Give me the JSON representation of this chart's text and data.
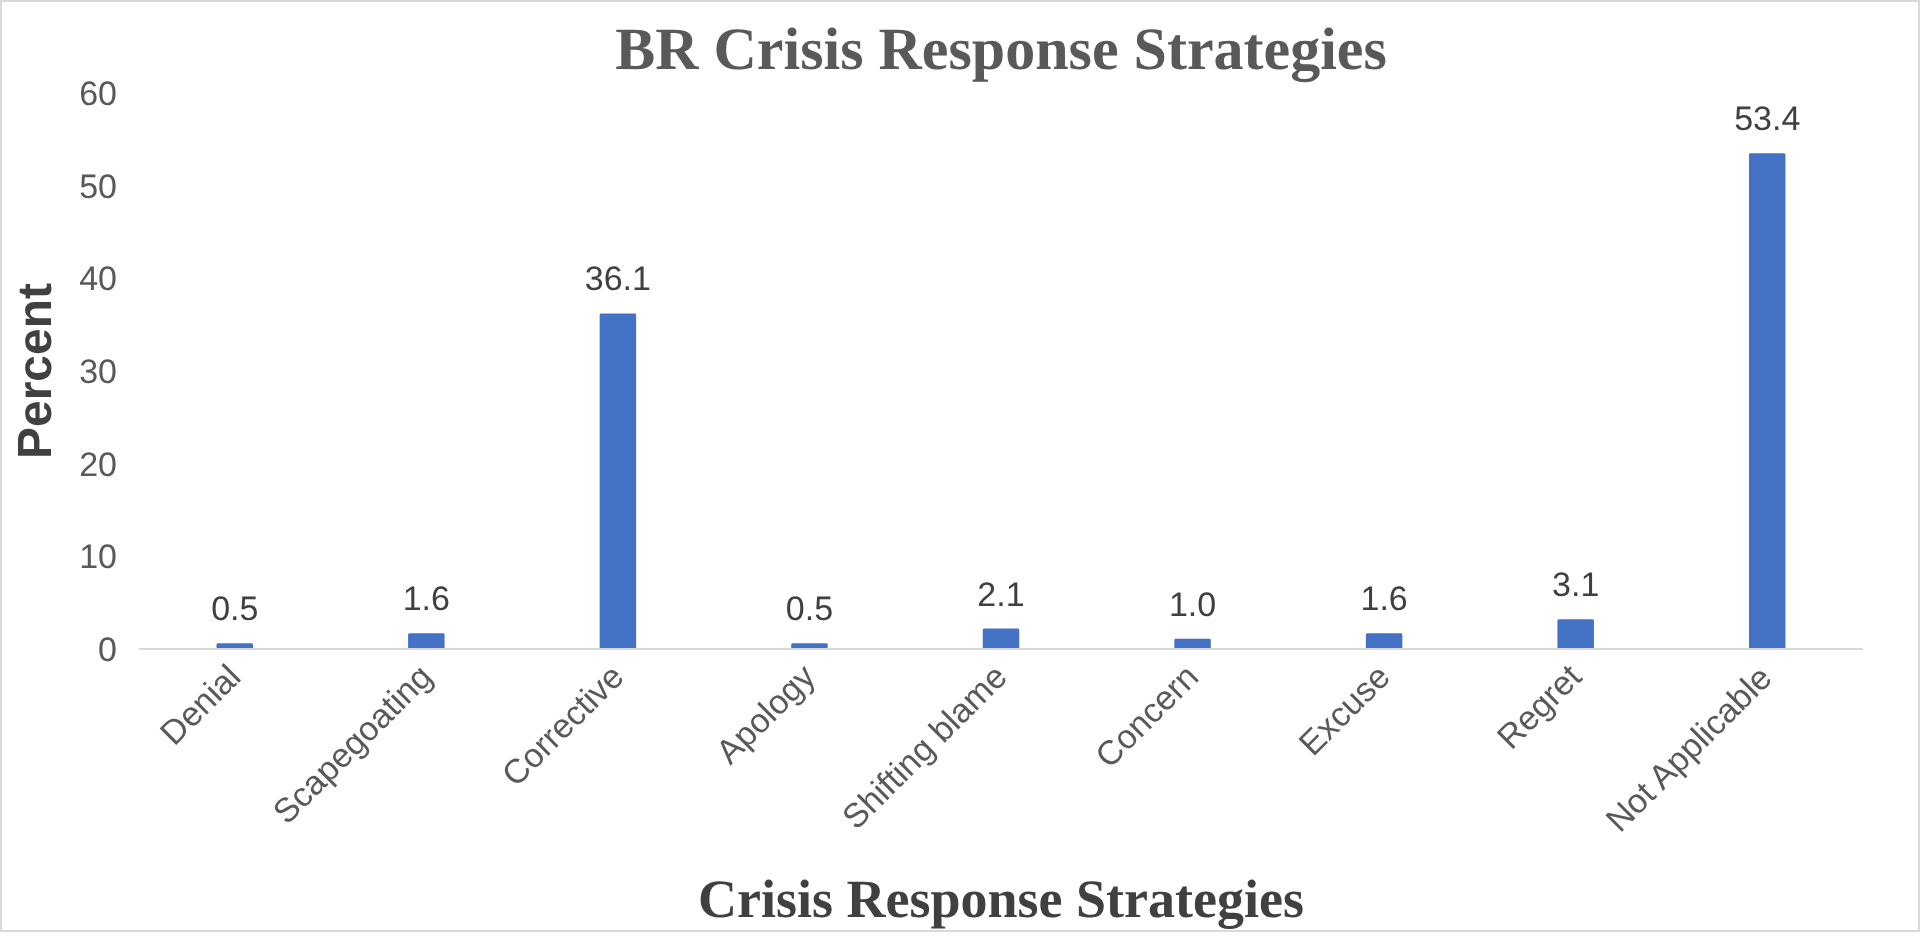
{
  "chart_data": {
    "type": "bar",
    "title": "BR Crisis Response Strategies",
    "xlabel": "Crisis Response Strategies",
    "ylabel": "Percent",
    "categories": [
      "Denial",
      "Scapegoating",
      "Corrective",
      "Apology",
      "Shifting blame",
      "Concern",
      "Excuse",
      "Regret",
      "Not Applicable"
    ],
    "values": [
      0.5,
      1.6,
      36.1,
      0.5,
      2.1,
      1.0,
      1.6,
      3.1,
      53.4
    ],
    "value_labels": [
      "0.5",
      "1.6",
      "36.1",
      "0.5",
      "2.1",
      "1.0",
      "1.6",
      "3.1",
      "53.4"
    ],
    "color": "#4472c4",
    "ylim": [
      0,
      60
    ],
    "yticks": [
      0,
      10,
      20,
      30,
      40,
      50,
      60
    ],
    "grid": false
  }
}
